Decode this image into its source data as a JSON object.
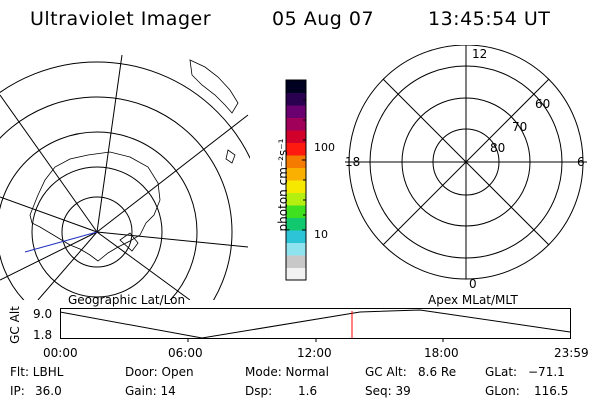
{
  "header": {
    "title": "Ultraviolet Imager",
    "date": "05 Aug 07",
    "time": "13:45:54 UT"
  },
  "colorbar": {
    "unit_label": "photon cm⁻²s⁻¹",
    "tick_100": "100",
    "tick_10": "10",
    "colors": [
      "#f2f2f2",
      "#c8c8c8",
      "#8fe3ee",
      "#2ec4d8",
      "#12c86e",
      "#3fe020",
      "#b4ef10",
      "#f7e800",
      "#f9b000",
      "#f57a00",
      "#ff1a10",
      "#d0002a",
      "#a0005a",
      "#6a0070",
      "#2a0050",
      "#000020"
    ]
  },
  "geo_panel": {
    "label": "Geographic Lat/Lon"
  },
  "apex_panel": {
    "label": "Apex MLat/MLT",
    "mlt_labels": {
      "top": "12",
      "bottom": "0",
      "left": "18",
      "right": "6"
    },
    "lat_labels": [
      "60",
      "70",
      "80"
    ]
  },
  "timeline": {
    "y_label": "GC Alt",
    "y_ticks": [
      "9.0",
      "1.8"
    ],
    "x_ticks": [
      "00:00",
      "06:00",
      "12:00",
      "18:00",
      "23:59"
    ],
    "marker_color": "#ff0000"
  },
  "info": {
    "row1": {
      "flt": "Flt: LBHL",
      "door": "Door: Open",
      "mode": "Mode: Normal",
      "gcalt_label": "GC Alt:",
      "gcalt_value": "8.6 Re",
      "glat_label": "GLat:",
      "glat_value": "−71.1"
    },
    "row2": {
      "ip_label": "IP:",
      "ip_value": "36.0",
      "gain": "Gain: 14",
      "dsp_label": "Dsp:",
      "dsp_value": "1.6",
      "seq": "Seq: 39",
      "glon_label": "GLon:",
      "glon_value": "116.5"
    }
  }
}
